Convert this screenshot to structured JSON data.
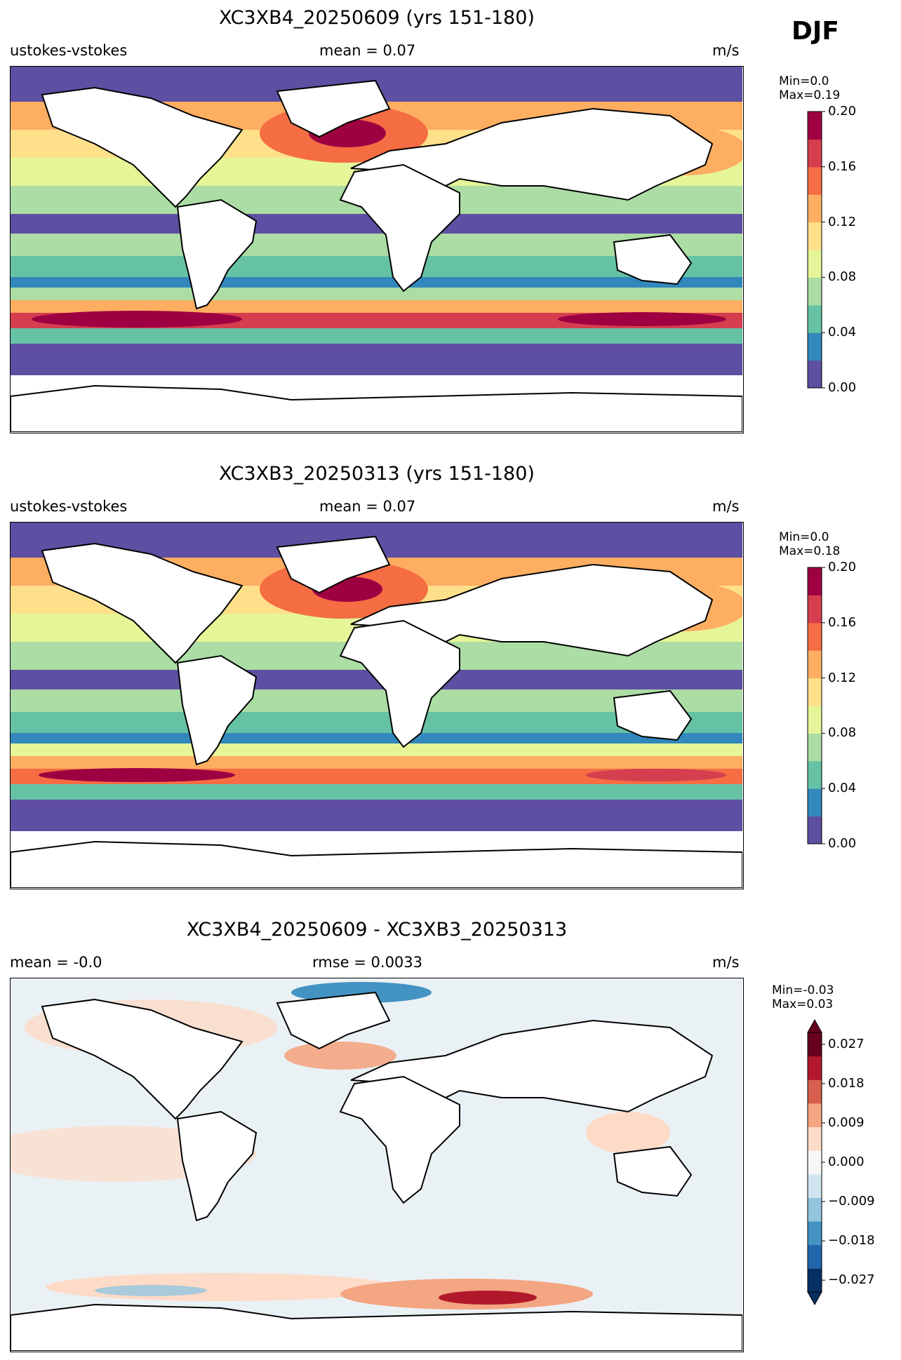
{
  "season": "DJF",
  "panels": [
    {
      "title": "XC3XB4_20250609 (yrs 151-180)",
      "left_label": "ustokes-vstokes",
      "center_label": "mean = 0.07",
      "units": "m/s",
      "min_label": "Min=0.0",
      "max_label": "Max=0.19",
      "colorbar": {
        "colors": [
          "#5e4fa2",
          "#3288bd",
          "#66c2a5",
          "#abdda4",
          "#e6f598",
          "#fee08b",
          "#fdae61",
          "#f46d43",
          "#d53e4f",
          "#9e0142"
        ],
        "ticks": [
          "0.00",
          "0.04",
          "0.08",
          "0.12",
          "0.16",
          "0.20"
        ]
      }
    },
    {
      "title": "XC3XB3_20250313 (yrs 151-180)",
      "left_label": "ustokes-vstokes",
      "center_label": "mean = 0.07",
      "units": "m/s",
      "min_label": "Min=0.0",
      "max_label": "Max=0.18",
      "colorbar": {
        "colors": [
          "#5e4fa2",
          "#3288bd",
          "#66c2a5",
          "#abdda4",
          "#e6f598",
          "#fee08b",
          "#fdae61",
          "#f46d43",
          "#d53e4f",
          "#9e0142"
        ],
        "ticks": [
          "0.00",
          "0.04",
          "0.08",
          "0.12",
          "0.16",
          "0.20"
        ]
      }
    },
    {
      "title": "XC3XB4_20250609 - XC3XB3_20250313",
      "left_label": "mean = -0.0",
      "center_label": "rmse = 0.0033",
      "units": "m/s",
      "min_label": "Min=-0.03",
      "max_label": "Max=0.03",
      "colorbar": {
        "colors": [
          "#053061",
          "#2166ac",
          "#4393c3",
          "#92c5de",
          "#d1e5f0",
          "#f7f7f7",
          "#fddbc7",
          "#f4a582",
          "#d6604d",
          "#b2182b",
          "#67001f"
        ],
        "ticks": [
          "−0.027",
          "−0.018",
          "−0.009",
          "0.000",
          "0.009",
          "0.018",
          "0.027"
        ]
      }
    }
  ]
}
